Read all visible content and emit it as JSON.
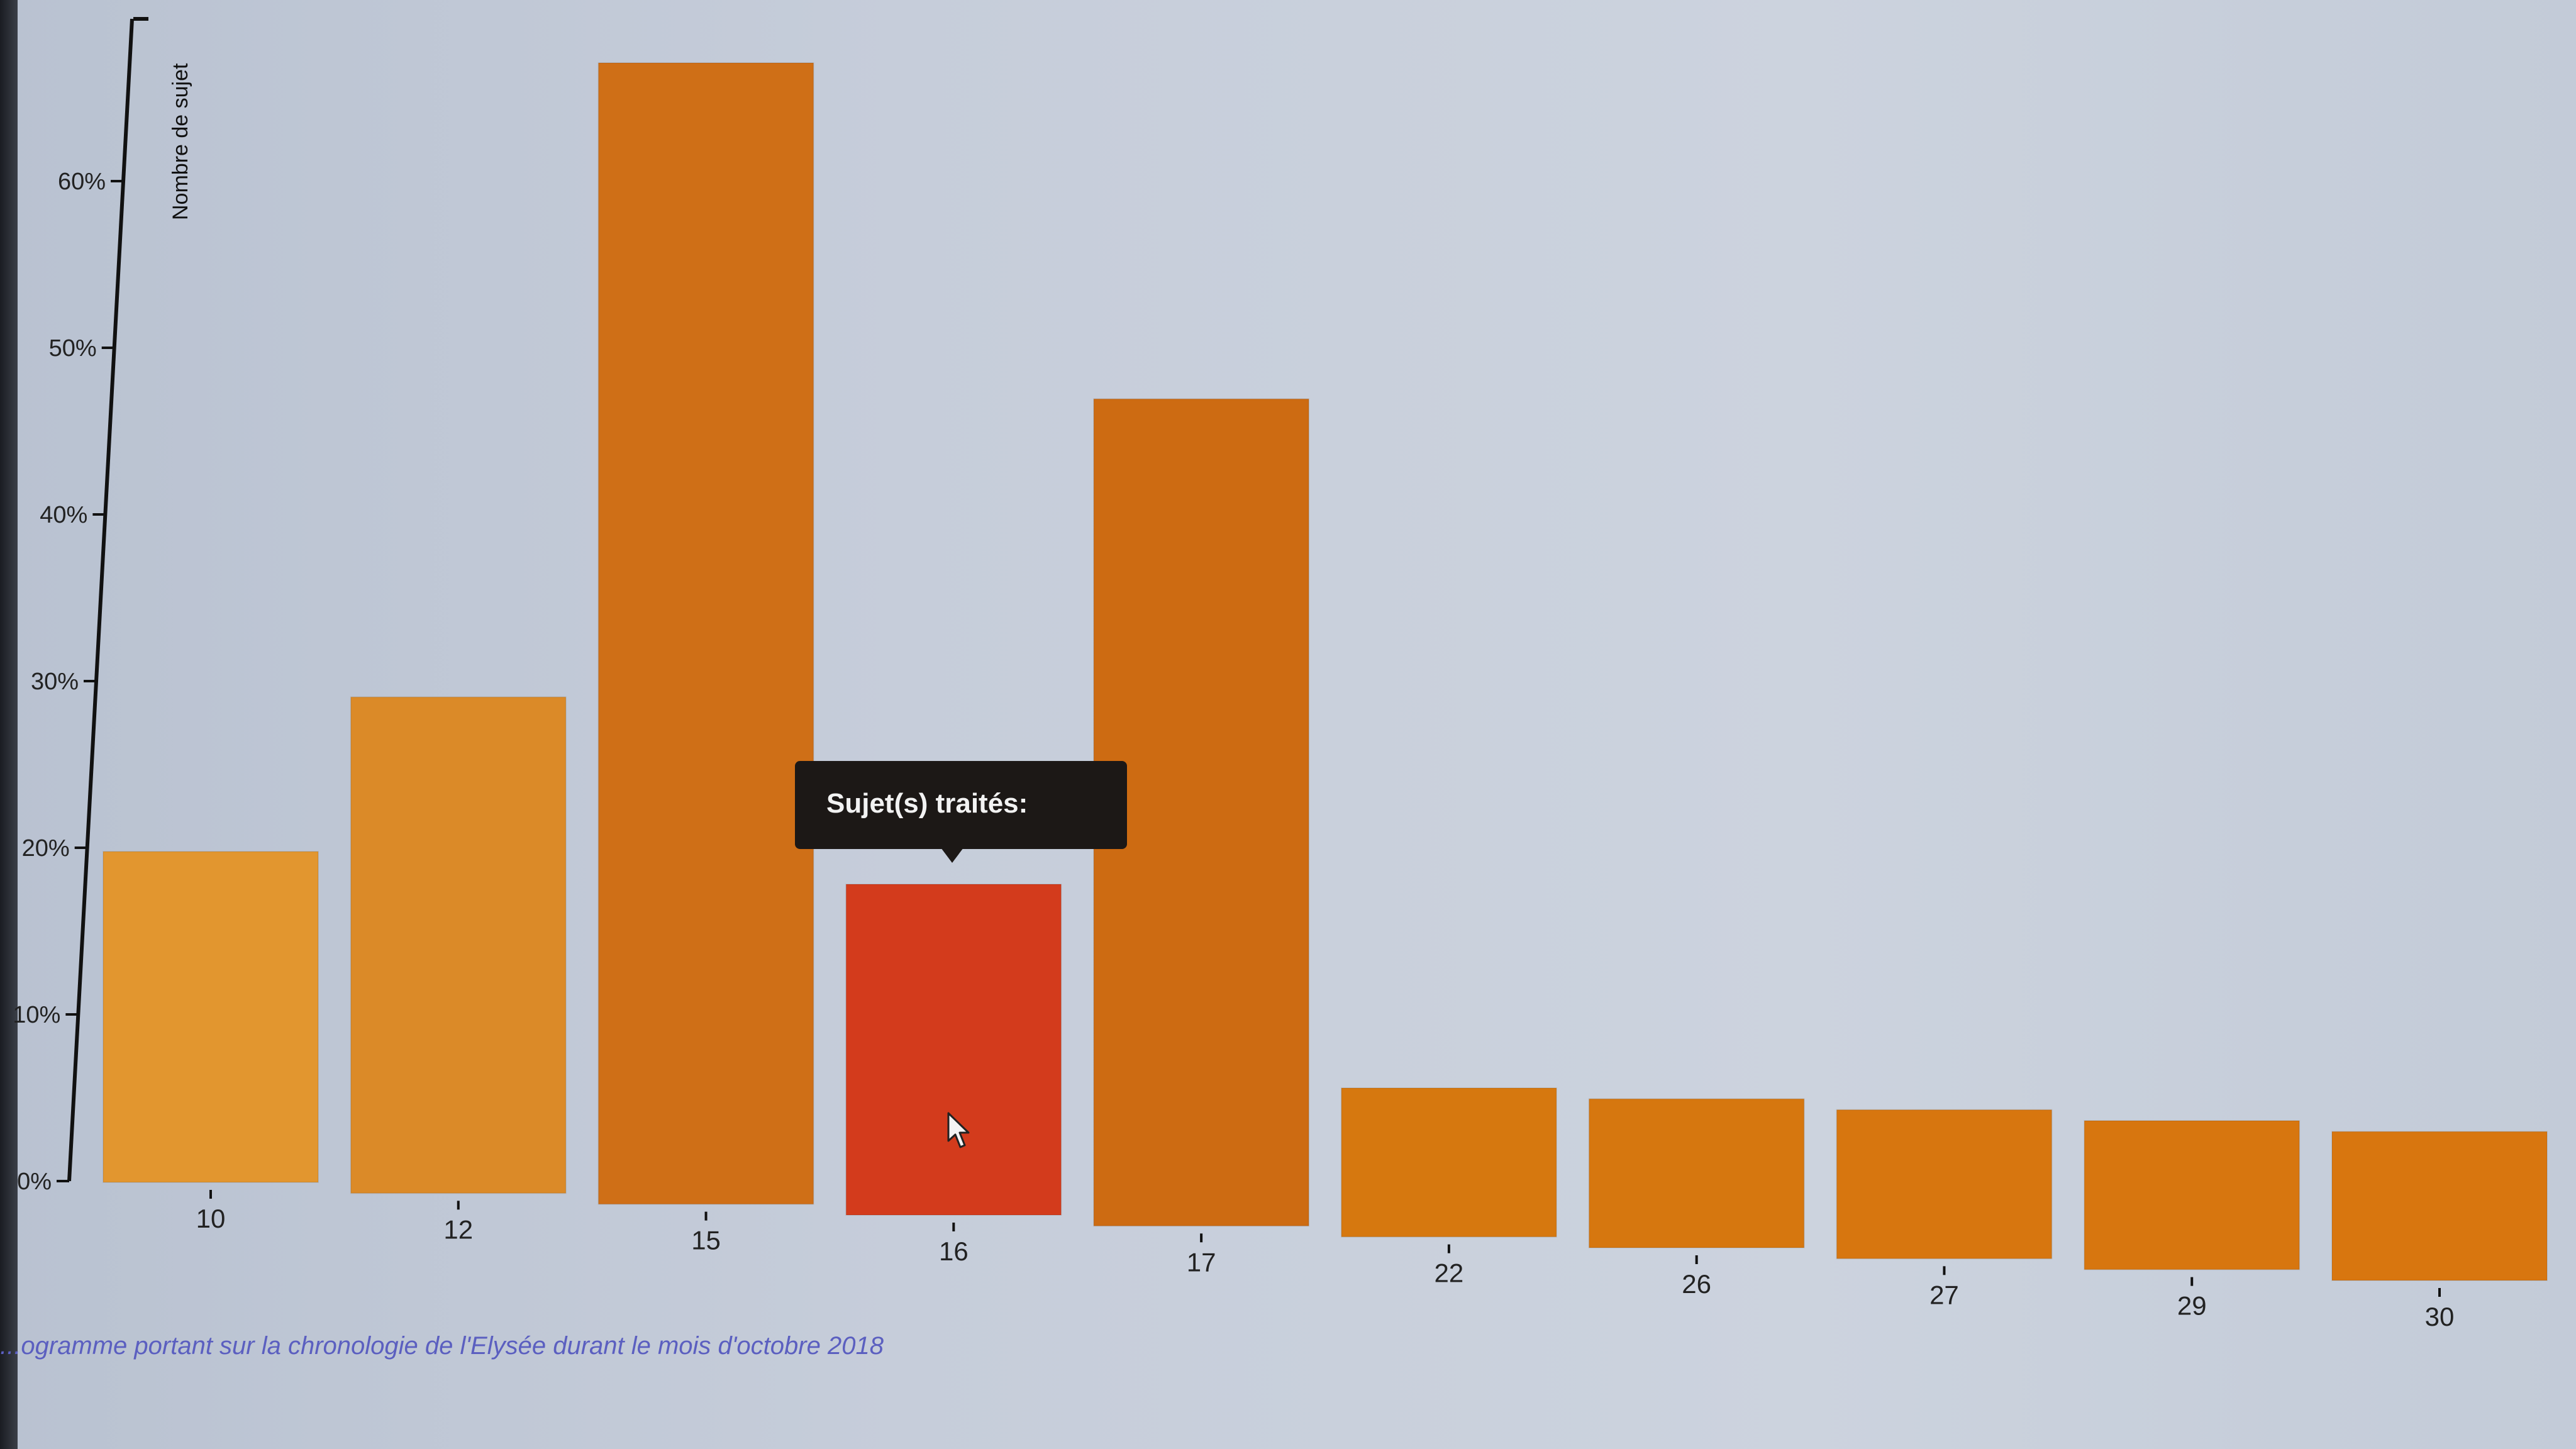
{
  "chart_data": {
    "type": "bar",
    "ylabel": "Nombre de sujet",
    "yticks": [
      "0%",
      "10%",
      "20%",
      "30%",
      "40%",
      "50%",
      "60%"
    ],
    "ylim": [
      0,
      70
    ],
    "categories": [
      "10",
      "12",
      "15",
      "16",
      "17",
      "22",
      "26",
      "27",
      "29",
      "30"
    ],
    "values": [
      20,
      30,
      69,
      20,
      50,
      9,
      9,
      9,
      9,
      9
    ],
    "colors": [
      "#e2962f",
      "#db8a28",
      "#cf6f17",
      "#d33b1c",
      "#cd6b12",
      "#d6780f",
      "#d6770f",
      "#d7760f",
      "#d7760f",
      "#d8760f"
    ],
    "highlighted_index": 3,
    "grid": false
  },
  "tooltip": {
    "text": "Sujet(s) traités:"
  },
  "caption": "...ogramme portant sur la chronologie de l'Elysée durant le mois d'octobre 2018",
  "icons": {
    "cursor": "mouse-pointer-icon"
  }
}
